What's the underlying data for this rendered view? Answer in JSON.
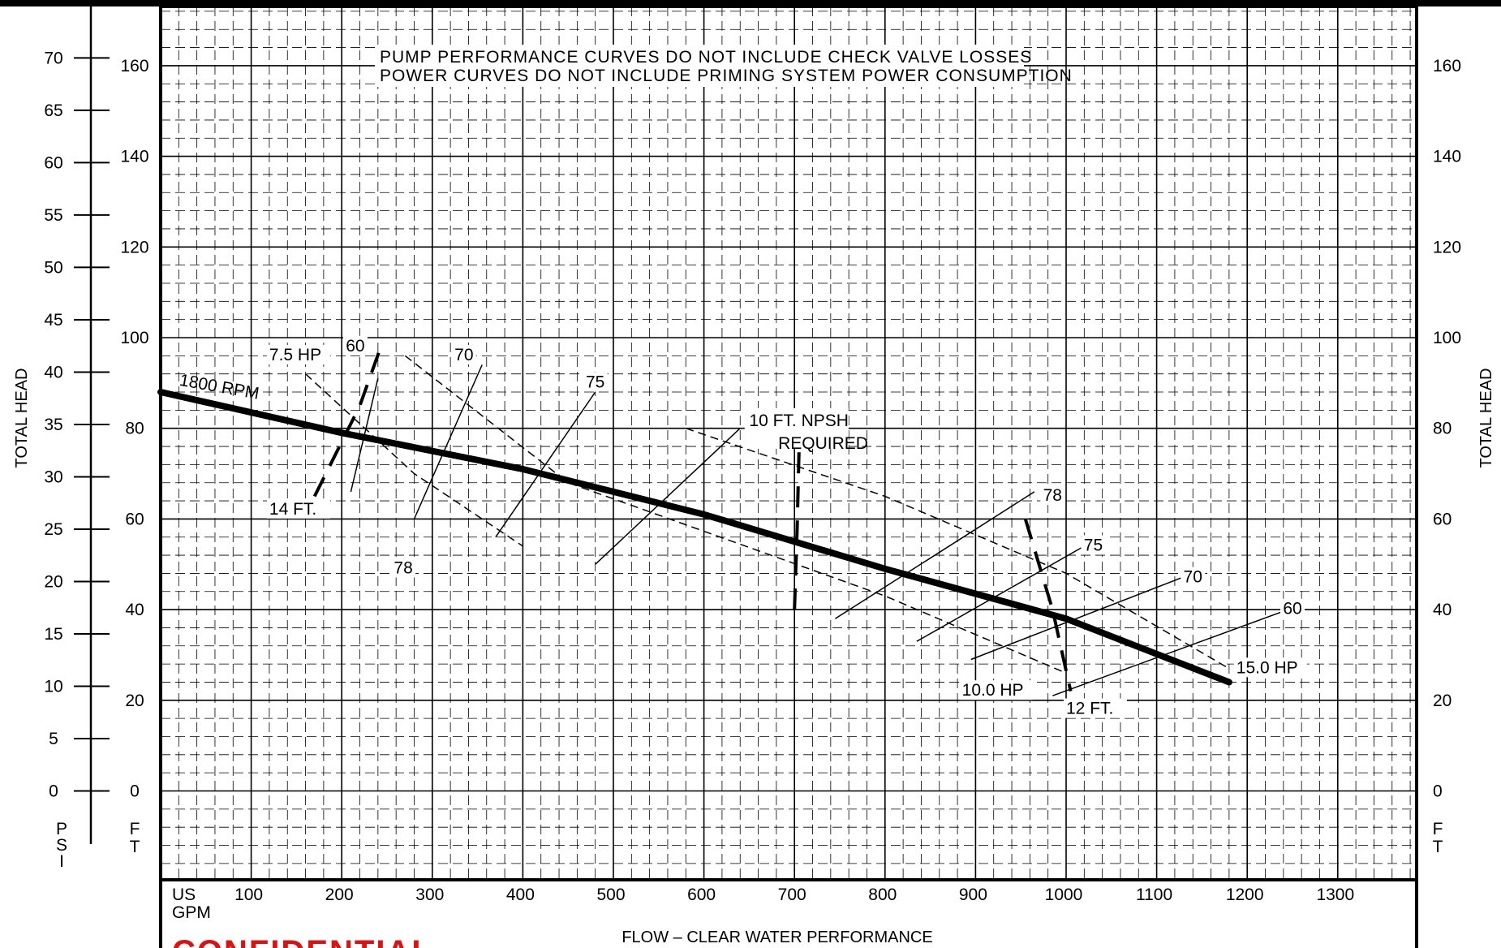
{
  "chart_data": {
    "type": "line",
    "notes": [
      "PUMP PERFORMANCE CURVES DO NOT INCLUDE CHECK VALVE LOSSES",
      "POWER CURVES DO NOT INCLUDE PRIMING SYSTEM POWER CONSUMPTION"
    ],
    "xlabel": "FLOW – CLEAR WATER PERFORMANCE",
    "x_unit_lines": [
      "US",
      "GPM"
    ],
    "ylabel_left": "TOTAL HEAD",
    "ylabel_right": "TOTAL HEAD",
    "psi_unit": [
      "P",
      "S",
      "I"
    ],
    "ft_unit": [
      "F",
      "T"
    ],
    "xlim": [
      0,
      1390
    ],
    "ylim_ft": [
      -20,
      175
    ],
    "x_ticks": [
      100,
      200,
      300,
      400,
      500,
      600,
      700,
      800,
      900,
      1000,
      1100,
      1200,
      1300
    ],
    "y_ticks_ft": [
      0,
      20,
      40,
      60,
      80,
      100,
      120,
      140,
      160
    ],
    "y_ticks_psi": [
      0,
      5,
      10,
      15,
      20,
      25,
      30,
      35,
      40,
      45,
      50,
      55,
      60,
      65,
      70
    ],
    "grid": true,
    "head_curve": {
      "label": "1800 RPM",
      "x": [
        0,
        200,
        400,
        600,
        800,
        1000,
        1180
      ],
      "y": [
        88,
        79,
        71,
        61,
        49,
        38,
        24
      ]
    },
    "power_curves": [
      {
        "label": "7.5 HP",
        "x": [
          160,
          280,
          400
        ],
        "y": [
          92,
          70,
          54
        ]
      },
      {
        "label": "10.0 HP",
        "x": [
          270,
          450,
          800,
          1000
        ],
        "y": [
          96,
          68,
          43,
          26
        ]
      },
      {
        "label": "15.0 HP",
        "x": [
          580,
          800,
          1000,
          1180
        ],
        "y": [
          80,
          65,
          48,
          27
        ]
      }
    ],
    "efficiency_lines": [
      {
        "label": "60",
        "x": [
          210,
          240
        ],
        "y": [
          66,
          91
        ]
      },
      {
        "label": "70",
        "x": [
          280,
          355
        ],
        "y": [
          60,
          94
        ]
      },
      {
        "label": "75",
        "x": [
          370,
          480
        ],
        "y": [
          56,
          88
        ]
      },
      {
        "label": "78",
        "x": [
          480,
          640
        ],
        "y": [
          50,
          80
        ]
      },
      {
        "label": "78",
        "x": [
          745,
          965
        ],
        "y": [
          38,
          66
        ]
      },
      {
        "label": "75",
        "x": [
          835,
          1020
        ],
        "y": [
          33,
          54
        ]
      },
      {
        "label": "70",
        "x": [
          895,
          1140
        ],
        "y": [
          29,
          48
        ]
      },
      {
        "label": "60",
        "x": [
          985,
          1245
        ],
        "y": [
          21,
          40
        ]
      }
    ],
    "npsh_curves": [
      {
        "label": "14 FT.",
        "x": [
          170,
          220,
          245
        ],
        "y": [
          65,
          85,
          99
        ]
      },
      {
        "label": "10 FT. NPSH REQUIRED",
        "x": [
          700,
          703,
          705
        ],
        "y": [
          40,
          58,
          75
        ]
      },
      {
        "label": "12 FT.",
        "x": [
          955,
          985,
          1005
        ],
        "y": [
          60,
          40,
          22
        ]
      }
    ]
  },
  "stamp_text": "CONFIDENTIAL"
}
